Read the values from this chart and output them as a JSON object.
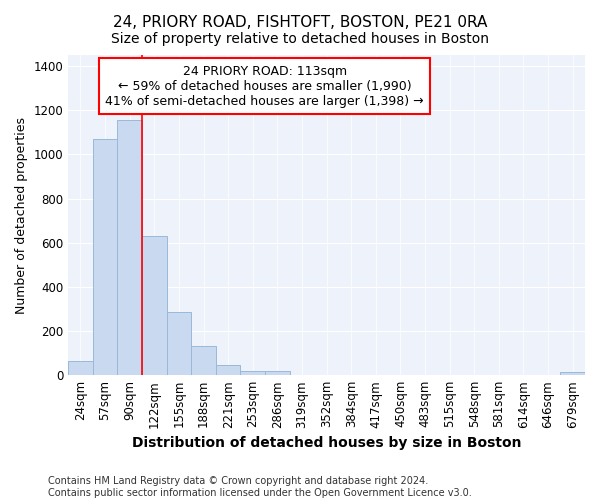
{
  "title": "24, PRIORY ROAD, FISHTOFT, BOSTON, PE21 0RA",
  "subtitle": "Size of property relative to detached houses in Boston",
  "xlabel": "Distribution of detached houses by size in Boston",
  "ylabel": "Number of detached properties",
  "bar_color": "#c8d9f0",
  "bar_edge_color": "#9ab8d8",
  "background_color": "#eef2fb",
  "categories": [
    "24sqm",
    "57sqm",
    "90sqm",
    "122sqm",
    "155sqm",
    "188sqm",
    "221sqm",
    "253sqm",
    "286sqm",
    "319sqm",
    "352sqm",
    "384sqm",
    "417sqm",
    "450sqm",
    "483sqm",
    "515sqm",
    "548sqm",
    "581sqm",
    "614sqm",
    "646sqm",
    "679sqm"
  ],
  "values": [
    65,
    1070,
    1155,
    630,
    285,
    130,
    45,
    20,
    20,
    0,
    0,
    0,
    0,
    0,
    0,
    0,
    0,
    0,
    0,
    0,
    15
  ],
  "ylim": [
    0,
    1450
  ],
  "yticks": [
    0,
    200,
    400,
    600,
    800,
    1000,
    1200,
    1400
  ],
  "property_label": "24 PRIORY ROAD: 113sqm",
  "annotation_line1": "← 59% of detached houses are smaller (1,990)",
  "annotation_line2": "41% of semi-detached houses are larger (1,398) →",
  "vline_position": 3.0,
  "footnote1": "Contains HM Land Registry data © Crown copyright and database right 2024.",
  "footnote2": "Contains public sector information licensed under the Open Government Licence v3.0.",
  "title_fontsize": 11,
  "subtitle_fontsize": 10,
  "xlabel_fontsize": 10,
  "ylabel_fontsize": 9,
  "tick_fontsize": 8.5,
  "annot_fontsize": 9,
  "footnote_fontsize": 7
}
